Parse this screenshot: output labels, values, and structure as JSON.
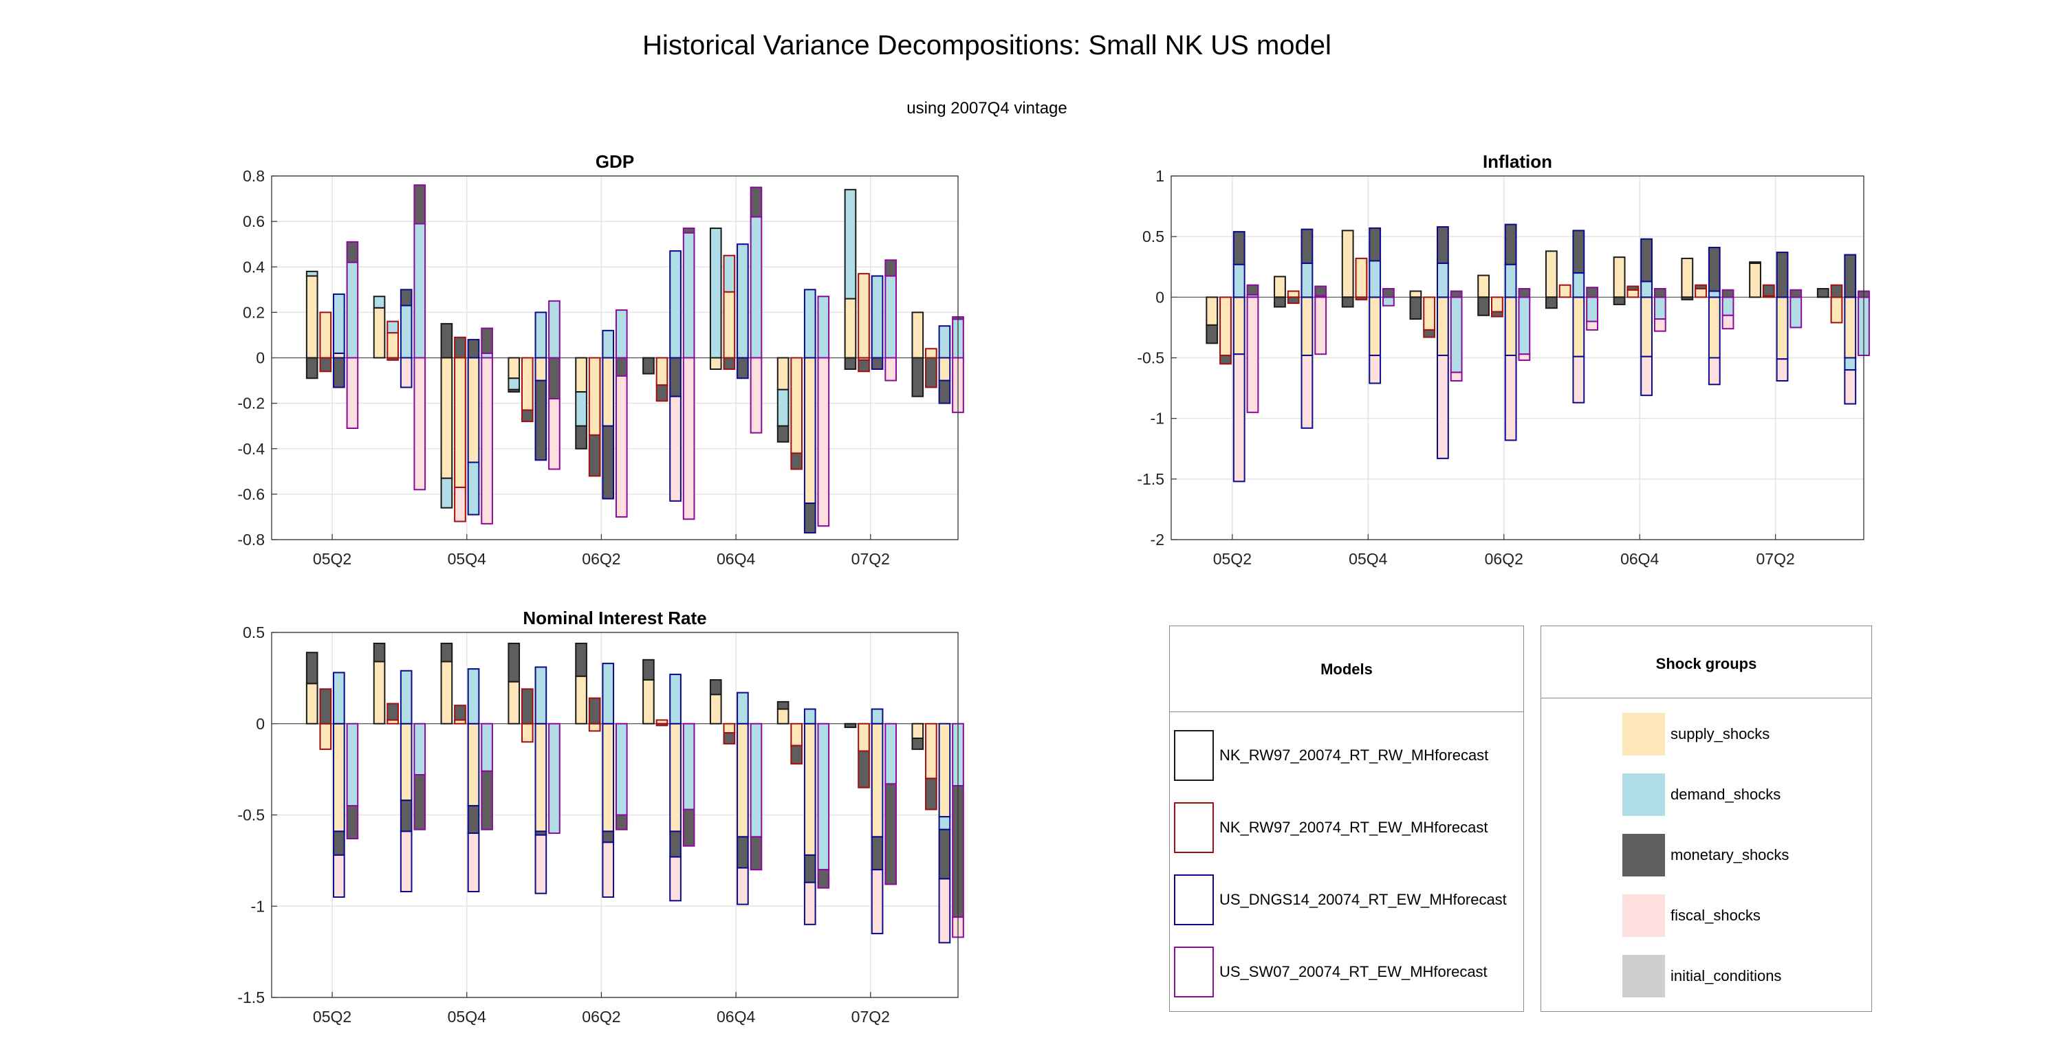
{
  "title": "Historical Variance Decompositions: Small NK US model",
  "subtitle": "using 2007Q4 vintage",
  "colors": {
    "supply_shocks": "#fde6b8",
    "demand_shocks": "#b0dde6",
    "monetary_shocks": "#5e5e5e",
    "fiscal_shocks": "#fde0de",
    "initial_conditions": "#cfcfcf",
    "NK_RW97_20074_RT_RW_MHforecast": "#1a1a1a",
    "NK_RW97_20074_RT_EW_MHforecast": "#a01010",
    "US_DNGS14_20074_RT_EW_MHforecast": "#0a0a8a",
    "US_SW07_20074_RT_EW_MHforecast": "#8b0a9b"
  },
  "legend_models": {
    "title": "Models",
    "items": [
      {
        "label": "NK_RW97_20074_RT_RW_MHforecast",
        "color": "#1a1a1a"
      },
      {
        "label": "NK_RW97_20074_RT_EW_MHforecast",
        "color": "#a01010"
      },
      {
        "label": "US_DNGS14_20074_RT_EW_MHforecast",
        "color": "#0a0a8a"
      },
      {
        "label": "US_SW07_20074_RT_EW_MHforecast",
        "color": "#8b0a9b"
      }
    ]
  },
  "legend_shocks": {
    "title": "Shock groups",
    "items": [
      {
        "label": "supply_shocks",
        "color": "#fde6b8"
      },
      {
        "label": "demand_shocks",
        "color": "#b0dde6"
      },
      {
        "label": "monetary_shocks",
        "color": "#5e5e5e"
      },
      {
        "label": "fiscal_shocks",
        "color": "#fde0de"
      },
      {
        "label": "initial_conditions",
        "color": "#cfcfcf"
      }
    ]
  },
  "chart_data": [
    {
      "type": "bar",
      "title": "GDP",
      "xlabel": "",
      "ylabel": "",
      "ylim": [
        -0.8,
        0.8
      ],
      "yticks": [
        "0.8",
        "0.6",
        "0.4",
        "0.2",
        "0",
        "-0.2",
        "-0.4",
        "-0.6",
        "-0.8"
      ],
      "ytick_values": [
        0.8,
        0.6,
        0.4,
        0.2,
        0,
        -0.2,
        -0.4,
        -0.6,
        -0.8
      ],
      "xticks": [
        "05Q2",
        "05Q4",
        "06Q2",
        "06Q4",
        "07Q2"
      ],
      "xtick_positions": [
        1,
        3,
        5,
        7,
        9
      ],
      "categories": [
        "05Q2",
        "05Q3",
        "05Q4",
        "06Q1",
        "06Q2",
        "06Q3",
        "06Q4",
        "07Q1",
        "07Q2",
        "07Q3"
      ],
      "grid": true,
      "models": [
        "NK_RW97_20074_RT_RW_MHforecast",
        "NK_RW97_20074_RT_EW_MHforecast",
        "US_DNGS14_20074_RT_EW_MHforecast",
        "US_SW07_20074_RT_EW_MHforecast"
      ],
      "bars": [
        [
          {
            "supply": 0.36,
            "demand": 0.02,
            "monetary": -0.09
          },
          {
            "supply": 0.2,
            "monetary": -0.06
          },
          {
            "supply": 0.02,
            "demand": 0.26,
            "monetary": -0.13
          },
          {
            "demand": 0.42,
            "monetary": 0.09,
            "fiscal": -0.31
          }
        ],
        [
          {
            "supply": 0.22,
            "demand": 0.05
          },
          {
            "supply": 0.11,
            "demand": 0.05,
            "monetary": -0.01
          },
          {
            "demand": 0.23,
            "monetary": 0.07,
            "fiscal": -0.13
          },
          {
            "demand": 0.59,
            "monetary": 0.17,
            "fiscal": -0.58
          }
        ],
        [
          {
            "supply": -0.53,
            "demand": -0.13,
            "monetary": 0.15
          },
          {
            "supply": -0.57,
            "monetary": 0.09,
            "fiscal": -0.15
          },
          {
            "supply": -0.46,
            "demand": -0.23,
            "monetary": 0.08
          },
          {
            "monetary": 0.11,
            "demand": 0.02,
            "fiscal": -0.73
          }
        ],
        [
          {
            "supply": -0.09,
            "demand": -0.05,
            "monetary": -0.01
          },
          {
            "supply": -0.23,
            "monetary": -0.05
          },
          {
            "demand": 0.2,
            "supply": -0.1,
            "monetary": -0.35
          },
          {
            "demand": 0.25,
            "monetary": -0.18,
            "fiscal": -0.31
          }
        ],
        [
          {
            "supply": -0.15,
            "demand": -0.15,
            "monetary": -0.1
          },
          {
            "supply": -0.34,
            "monetary": -0.18
          },
          {
            "demand": 0.12,
            "supply": -0.3,
            "monetary": -0.32
          },
          {
            "demand": 0.21,
            "fiscal": -0.62,
            "monetary": -0.08
          }
        ],
        [
          {
            "monetary": -0.07
          },
          {
            "supply": -0.12,
            "monetary": -0.07
          },
          {
            "demand": 0.47,
            "monetary": -0.17,
            "fiscal": -0.46
          },
          {
            "demand": 0.55,
            "monetary": 0.02,
            "fiscal": -0.71
          }
        ],
        [
          {
            "demand": 0.57,
            "supply": -0.05
          },
          {
            "supply": 0.29,
            "demand": 0.16,
            "monetary": -0.05
          },
          {
            "demand": 0.5,
            "monetary": -0.09
          },
          {
            "demand": 0.62,
            "monetary": 0.13,
            "fiscal": -0.33
          }
        ],
        [
          {
            "supply": -0.14,
            "demand": -0.16,
            "monetary": -0.07
          },
          {
            "supply": -0.42,
            "monetary": -0.07
          },
          {
            "demand": 0.3,
            "supply": -0.64,
            "monetary": -0.13
          },
          {
            "demand": 0.27,
            "fiscal": -0.74
          }
        ],
        [
          {
            "demand": 0.48,
            "supply": 0.26,
            "monetary": -0.05
          },
          {
            "supply": 0.37,
            "demand": -0.01,
            "monetary": -0.05
          },
          {
            "demand": 0.36,
            "monetary": -0.05
          },
          {
            "demand": 0.36,
            "monetary": 0.07,
            "fiscal": -0.1
          }
        ],
        [
          {
            "supply": 0.2,
            "monetary": -0.17
          },
          {
            "supply": 0.04,
            "monetary": -0.13
          },
          {
            "demand": 0.14,
            "monetary": -0.1,
            "supply": -0.1
          },
          {
            "demand": 0.17,
            "monetary": 0.01,
            "fiscal": -0.24
          }
        ]
      ]
    },
    {
      "type": "bar",
      "title": "Inflation",
      "xlabel": "",
      "ylabel": "",
      "ylim": [
        -2,
        1
      ],
      "yticks": [
        "1",
        "0.5",
        "0",
        "-0.5",
        "-1",
        "-1.5",
        "-2"
      ],
      "ytick_values": [
        1,
        0.5,
        0,
        -0.5,
        -1,
        -1.5,
        -2
      ],
      "xticks": [
        "05Q2",
        "05Q4",
        "06Q2",
        "06Q4",
        "07Q2"
      ],
      "xtick_positions": [
        1,
        3,
        5,
        7,
        9
      ],
      "categories": [
        "05Q2",
        "05Q3",
        "05Q4",
        "06Q1",
        "06Q2",
        "06Q3",
        "06Q4",
        "07Q1",
        "07Q2",
        "07Q3"
      ],
      "grid": true,
      "models": [
        "NK_RW97_20074_RT_RW_MHforecast",
        "NK_RW97_20074_RT_EW_MHforecast",
        "US_DNGS14_20074_RT_EW_MHforecast",
        "US_SW07_20074_RT_EW_MHforecast"
      ],
      "bars": [
        [
          {
            "supply": -0.23,
            "monetary": -0.15
          },
          {
            "supply": -0.48,
            "monetary": -0.07
          },
          {
            "demand": 0.27,
            "monetary": 0.27,
            "fiscal": -1.05,
            "supply": -0.47
          },
          {
            "demand": 0.02,
            "monetary": 0.08,
            "fiscal": -0.95
          }
        ],
        [
          {
            "supply": 0.17,
            "monetary": -0.08
          },
          {
            "supply": 0.05,
            "monetary": -0.05
          },
          {
            "demand": 0.28,
            "monetary": 0.28,
            "fiscal": -0.6,
            "supply": -0.48
          },
          {
            "monetary": 0.08,
            "demand": 0.01,
            "fiscal": -0.47
          }
        ],
        [
          {
            "supply": 0.55,
            "monetary": -0.08
          },
          {
            "supply": 0.32,
            "monetary": -0.02
          },
          {
            "demand": 0.3,
            "monetary": 0.27,
            "fiscal": -0.23,
            "supply": -0.48
          },
          {
            "monetary": 0.07,
            "demand": -0.07
          }
        ],
        [
          {
            "supply": 0.05,
            "monetary": -0.18
          },
          {
            "supply": -0.27,
            "monetary": -0.06
          },
          {
            "demand": 0.28,
            "monetary": 0.3,
            "fiscal": -0.85,
            "supply": -0.48
          },
          {
            "monetary": 0.05,
            "demand": -0.62,
            "fiscal": -0.07
          }
        ],
        [
          {
            "supply": 0.18,
            "monetary": -0.15
          },
          {
            "supply": -0.12,
            "monetary": -0.04
          },
          {
            "demand": 0.27,
            "monetary": 0.33,
            "fiscal": -0.7,
            "supply": -0.48
          },
          {
            "monetary": 0.07,
            "demand": -0.47,
            "fiscal": -0.05
          }
        ],
        [
          {
            "supply": 0.38,
            "monetary": -0.09
          },
          {
            "supply": 0.1
          },
          {
            "demand": 0.2,
            "monetary": 0.35,
            "fiscal": -0.38,
            "supply": -0.49
          },
          {
            "monetary": 0.08,
            "demand": -0.2,
            "fiscal": -0.07
          }
        ],
        [
          {
            "supply": 0.33,
            "monetary": -0.06
          },
          {
            "supply": 0.06,
            "monetary": 0.03
          },
          {
            "demand": 0.13,
            "monetary": 0.35,
            "fiscal": -0.32,
            "supply": -0.49
          },
          {
            "monetary": 0.07,
            "demand": -0.18,
            "fiscal": -0.1
          }
        ],
        [
          {
            "supply": 0.32,
            "monetary": -0.02
          },
          {
            "supply": 0.07,
            "monetary": 0.03
          },
          {
            "demand": 0.05,
            "monetary": 0.36,
            "fiscal": -0.22,
            "supply": -0.5
          },
          {
            "monetary": 0.06,
            "demand": -0.15,
            "fiscal": -0.11
          }
        ],
        [
          {
            "supply": 0.28,
            "monetary": 0.01
          },
          {
            "supply": 0.01,
            "monetary": 0.09
          },
          {
            "demand": 0,
            "monetary": 0.37,
            "fiscal": -0.18,
            "supply": -0.51
          },
          {
            "monetary": 0.06,
            "demand": -0.25
          }
        ],
        [
          {
            "monetary": 0.07
          },
          {
            "supply": -0.21,
            "monetary": 0.1
          },
          {
            "demand": -0.1,
            "monetary": 0.35,
            "fiscal": -0.28,
            "supply": -0.5
          },
          {
            "monetary": 0.05,
            "demand": -0.48
          }
        ]
      ]
    },
    {
      "type": "bar",
      "title": "Nominal Interest Rate",
      "xlabel": "",
      "ylabel": "",
      "ylim": [
        -1.5,
        0.5
      ],
      "yticks": [
        "0.5",
        "0",
        "-0.5",
        "-1",
        "-1.5"
      ],
      "ytick_values": [
        0.5,
        0,
        -0.5,
        -1,
        -1.5
      ],
      "xticks": [
        "05Q2",
        "05Q4",
        "06Q2",
        "06Q4",
        "07Q2"
      ],
      "xtick_positions": [
        1,
        3,
        5,
        7,
        9
      ],
      "categories": [
        "05Q2",
        "05Q3",
        "05Q4",
        "06Q1",
        "06Q2",
        "06Q3",
        "06Q4",
        "07Q1",
        "07Q2",
        "07Q3"
      ],
      "grid": true,
      "models": [
        "NK_RW97_20074_RT_RW_MHforecast",
        "NK_RW97_20074_RT_EW_MHforecast",
        "US_DNGS14_20074_RT_EW_MHforecast",
        "US_SW07_20074_RT_EW_MHforecast"
      ],
      "bars": [
        [
          {
            "supply": 0.22,
            "monetary": 0.17
          },
          {
            "supply": -0.14,
            "monetary": 0.19
          },
          {
            "demand": 0.28,
            "monetary": -0.13,
            "fiscal": -0.23,
            "supply": -0.59
          },
          {
            "demand": -0.45,
            "monetary": -0.18
          }
        ],
        [
          {
            "supply": 0.34,
            "monetary": 0.1
          },
          {
            "supply": 0.02,
            "monetary": 0.09
          },
          {
            "demand": 0.29,
            "monetary": -0.17,
            "fiscal": -0.33,
            "supply": -0.42
          },
          {
            "demand": -0.28,
            "monetary": -0.3
          }
        ],
        [
          {
            "supply": 0.34,
            "monetary": 0.1
          },
          {
            "supply": 0.02,
            "monetary": 0.08
          },
          {
            "demand": 0.3,
            "monetary": -0.15,
            "fiscal": -0.32,
            "supply": -0.45
          },
          {
            "demand": -0.26,
            "monetary": -0.32
          }
        ],
        [
          {
            "supply": 0.23,
            "monetary": 0.21
          },
          {
            "supply": -0.1,
            "monetary": 0.19
          },
          {
            "demand": 0.31,
            "monetary": -0.02,
            "fiscal": -0.32,
            "supply": -0.59
          },
          {
            "demand": -0.6
          }
        ],
        [
          {
            "supply": 0.26,
            "monetary": 0.18
          },
          {
            "supply": -0.04,
            "monetary": 0.14
          },
          {
            "demand": 0.33,
            "monetary": -0.06,
            "fiscal": -0.3,
            "supply": -0.59
          },
          {
            "demand": -0.5,
            "monetary": -0.08
          }
        ],
        [
          {
            "supply": 0.24,
            "monetary": 0.11
          },
          {
            "supply": 0.02,
            "monetary": -0.01
          },
          {
            "demand": 0.27,
            "monetary": -0.14,
            "fiscal": -0.24,
            "supply": -0.59
          },
          {
            "demand": -0.47,
            "monetary": -0.2
          }
        ],
        [
          {
            "supply": 0.16,
            "monetary": 0.08
          },
          {
            "supply": -0.05,
            "monetary": -0.06
          },
          {
            "demand": 0.17,
            "monetary": -0.17,
            "fiscal": -0.2,
            "supply": -0.62
          },
          {
            "demand": -0.62,
            "monetary": -0.18
          }
        ],
        [
          {
            "supply": 0.08,
            "monetary": 0.04
          },
          {
            "supply": -0.12,
            "monetary": -0.1
          },
          {
            "demand": 0.08,
            "monetary": -0.15,
            "fiscal": -0.23,
            "supply": -0.72
          },
          {
            "demand": -0.8,
            "monetary": -0.1
          }
        ],
        [
          {
            "monetary": -0.02
          },
          {
            "supply": -0.15,
            "monetary": -0.2
          },
          {
            "demand": 0.08,
            "monetary": -0.18,
            "fiscal": -0.35,
            "supply": -0.62
          },
          {
            "demand": -0.33,
            "monetary": -0.55
          }
        ],
        [
          {
            "supply": -0.08,
            "monetary": -0.06
          },
          {
            "supply": -0.3,
            "monetary": -0.17
          },
          {
            "demand": -0.07,
            "monetary": -0.27,
            "fiscal": -0.35,
            "supply": -0.51
          },
          {
            "demand": -0.34,
            "monetary": -0.72,
            "fiscal": -0.11
          }
        ]
      ]
    }
  ]
}
